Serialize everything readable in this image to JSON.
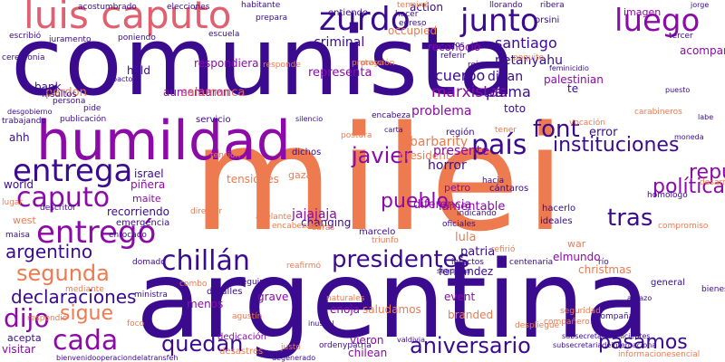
{
  "words": [
    {
      "text": "comunista",
      "color": "#3a0a8f"
    },
    {
      "text": "milei",
      "color": "#ee7a50"
    },
    {
      "text": "argentina",
      "color": "#3a0a8f"
    },
    {
      "text": "humildad",
      "color": "#8c0aa8"
    },
    {
      "text": "luis caputo",
      "color": "#e06070"
    },
    {
      "text": "junto",
      "color": "#3a0a8f"
    },
    {
      "text": "zurdo",
      "color": "#3a0a8f"
    },
    {
      "text": "luego",
      "color": "#8c0aa8"
    },
    {
      "text": "entrega",
      "color": "#3a0a8f"
    },
    {
      "text": "entregó",
      "color": "#8c0aa8"
    },
    {
      "text": "caputo",
      "color": "#8c0aa8"
    },
    {
      "text": "país",
      "color": "#3a0a8f"
    },
    {
      "text": "font",
      "color": "#3a0a8f"
    },
    {
      "text": "javier",
      "color": "#8c0aa8"
    },
    {
      "text": "pueblo",
      "color": "#8c0aa8"
    },
    {
      "text": "república",
      "color": "#8c0aa8"
    },
    {
      "text": "política",
      "color": "#8c0aa8"
    },
    {
      "text": "instituciones",
      "color": "#3a0a8f"
    },
    {
      "text": "tras",
      "color": "#3a0a8f"
    },
    {
      "text": "chillán",
      "color": "#3a0a8f"
    },
    {
      "text": "presidentes",
      "color": "#3a0a8f"
    },
    {
      "text": "segunda",
      "color": "#ee7a50"
    },
    {
      "text": "argentino",
      "color": "#3a0a8f"
    },
    {
      "text": "declaraciones",
      "color": "#3a0a8f"
    },
    {
      "text": "dijo",
      "color": "#8c0aa8"
    },
    {
      "text": "sigue",
      "color": "#ee7a50"
    },
    {
      "text": "cada",
      "color": "#8c0aa8"
    },
    {
      "text": "quedan",
      "color": "#3a0a8f"
    },
    {
      "text": "aniversario",
      "color": "#3a0a8f"
    },
    {
      "text": "pasamos",
      "color": "#3a0a8f"
    },
    {
      "text": "marxistas",
      "color": "#8c0aa8"
    },
    {
      "text": "santiago",
      "color": "#3a0a8f"
    },
    {
      "text": "criminal",
      "color": "#3a0a8f"
    },
    {
      "text": "entiendo",
      "color": "#3a0a8f"
    },
    {
      "text": "imagen",
      "color": "#8c0aa8"
    },
    {
      "text": "cuerpo",
      "color": "#3a0a8f"
    },
    {
      "text": "netanyahu",
      "color": "#3a0a8f"
    },
    {
      "text": "palma",
      "color": "#3a0a8f"
    },
    {
      "text": "toto",
      "color": "#3a0a8f"
    },
    {
      "text": "digan",
      "color": "#3a0a8f"
    },
    {
      "text": "representa",
      "color": "#8c0aa8"
    },
    {
      "text": "problema",
      "color": "#8c0aa8"
    },
    {
      "text": "occupied",
      "color": "#ee7a50"
    },
    {
      "text": "action",
      "color": "#3a0a8f"
    },
    {
      "text": "reconoció",
      "color": "#8c0aa8"
    },
    {
      "text": "acompañado",
      "color": "#8c0aa8"
    },
    {
      "text": "palestinian",
      "color": "#8c0aa8"
    },
    {
      "text": "barbarity",
      "color": "#ee7a50"
    },
    {
      "text": "error",
      "color": "#3a0a8f"
    },
    {
      "text": "president",
      "color": "#ee7a50"
    },
    {
      "text": "presente",
      "color": "#8c0aa8"
    },
    {
      "text": "horror",
      "color": "#3a0a8f"
    },
    {
      "text": "diferencia",
      "color": "#8c0aa8"
    },
    {
      "text": "lamentable",
      "color": "#8c0aa8"
    },
    {
      "text": "israel",
      "color": "#3a0a8f"
    },
    {
      "text": "maite",
      "color": "#8c0aa8"
    },
    {
      "text": "piñera",
      "color": "#8c0aa8"
    },
    {
      "text": "recorriendo",
      "color": "#3a0a8f"
    },
    {
      "text": "emergencia",
      "color": "#3a0a8f"
    },
    {
      "text": "west",
      "color": "#ee7a50"
    },
    {
      "text": "world",
      "color": "#3a0a8f"
    },
    {
      "text": "ahh",
      "color": "#3a0a8f"
    },
    {
      "text": "perdon",
      "color": "#ee7a50"
    },
    {
      "text": "held",
      "color": "#3a0a8f"
    },
    {
      "text": "bank",
      "color": "#3a0a8f"
    },
    {
      "text": "insultos",
      "color": "#3a0a8f"
    },
    {
      "text": "aumentaron",
      "color": "#8c0aa8"
    },
    {
      "text": "respondiera",
      "color": "#8c0aa8"
    },
    {
      "text": "salamanca",
      "color": "#e06070"
    },
    {
      "text": "tensiones",
      "color": "#ee7a50"
    },
    {
      "text": "jajajaja",
      "color": "#8c0aa8"
    },
    {
      "text": "changing",
      "color": "#3a0a8f"
    },
    {
      "text": "petro",
      "color": "#8c0aa8"
    },
    {
      "text": "lula",
      "color": "#ee7a50"
    },
    {
      "text": "patria",
      "color": "#3a0a8f"
    },
    {
      "text": "elmundo",
      "color": "#8c0aa8"
    },
    {
      "text": "fernandez",
      "color": "#3a0a8f"
    },
    {
      "text": "christmas",
      "color": "#ee7a50"
    },
    {
      "text": "event",
      "color": "#8c0aa8"
    },
    {
      "text": "branded",
      "color": "#ee7a50"
    },
    {
      "text": "saludamos",
      "color": "#ee7a50"
    },
    {
      "text": "grave",
      "color": "#8c0aa8"
    },
    {
      "text": "menos",
      "color": "#8c0aa8"
    },
    {
      "text": "enoja",
      "color": "#8c0aa8"
    },
    {
      "text": "vieron",
      "color": "#8c0aa8"
    },
    {
      "text": "chilean",
      "color": "#8c0aa8"
    },
    {
      "text": "visitar",
      "color": "#8c0aa8"
    },
    {
      "text": "acepta",
      "color": "#3a0a8f"
    },
    {
      "text": "desastres",
      "color": "#ee7a50"
    },
    {
      "text": "dedicación",
      "color": "#8c0aa8"
    },
    {
      "text": "detalles",
      "color": "#3a0a8f"
    },
    {
      "text": "marcelo",
      "color": "#3a0a8f"
    },
    {
      "text": "cántaros",
      "color": "#3a0a8f"
    },
    {
      "text": "war",
      "color": "#ee7a50"
    },
    {
      "text": "hacerlo",
      "color": "#3a0a8f"
    },
    {
      "text": "ideales",
      "color": "#3a0a8f"
    },
    {
      "text": "general",
      "color": "#3a0a8f"
    },
    {
      "text": "región",
      "color": "#3a0a8f"
    },
    {
      "text": "servicio",
      "color": "#3a0a8f"
    },
    {
      "text": "gaza",
      "color": "#ee7a50"
    },
    {
      "text": "dichos",
      "color": "#3a0a8f"
    },
    {
      "text": "acostumbrado",
      "color": "#3a0a8f"
    },
    {
      "text": "elecciones",
      "color": "#3a0a8f"
    },
    {
      "text": "habitante",
      "color": "#3a0a8f"
    },
    {
      "text": "llorando",
      "color": "#3a0a8f"
    },
    {
      "text": "ribera",
      "color": "#3a0a8f"
    },
    {
      "text": "orsini",
      "color": "#3a0a8f"
    },
    {
      "text": "escribió",
      "color": "#3a0a8f"
    },
    {
      "text": "juramento",
      "color": "#3a0a8f"
    },
    {
      "text": "poniendo",
      "color": "#3a0a8f"
    },
    {
      "text": "escuela",
      "color": "#3a0a8f"
    },
    {
      "text": "terminó",
      "color": "#ee7a50"
    },
    {
      "text": "hacer",
      "color": "#3a0a8f"
    },
    {
      "text": "egreso",
      "color": "#3a0a8f"
    },
    {
      "text": "prepara",
      "color": "#3a0a8f"
    },
    {
      "text": "nuevos",
      "color": "#3a0a8f"
    },
    {
      "text": "referir",
      "color": "#3a0a8f"
    },
    {
      "text": "rojas",
      "color": "#3a0a8f"
    },
    {
      "text": "poquito",
      "color": "#ee7a50"
    },
    {
      "text": "tercer",
      "color": "#3a0a8f"
    },
    {
      "text": "publicación",
      "color": "#3a0a8f"
    },
    {
      "text": "pide",
      "color": "#3a0a8f"
    },
    {
      "text": "ceremonia",
      "color": "#3a0a8f"
    },
    {
      "text": "trabajando",
      "color": "#3a0a8f"
    },
    {
      "text": "persona",
      "color": "#3a0a8f"
    },
    {
      "text": "encabeza",
      "color": "#3a0a8f"
    },
    {
      "text": "tener",
      "color": "#ee7a50"
    },
    {
      "text": "vocación",
      "color": "#ee7a50"
    },
    {
      "text": "carabineros",
      "color": "#ee7a50"
    },
    {
      "text": "hacia",
      "color": "#3a0a8f"
    },
    {
      "text": "oficiales",
      "color": "#3a0a8f"
    },
    {
      "text": "triunfo",
      "color": "#ee7a50"
    },
    {
      "text": "obras",
      "color": "#ee7a50"
    },
    {
      "text": "intactos",
      "color": "#3a0a8f"
    },
    {
      "text": "indicando",
      "color": "#3a0a8f"
    },
    {
      "text": "refirió",
      "color": "#ee7a50"
    },
    {
      "text": "centenaria",
      "color": "#3a0a8f"
    },
    {
      "text": "reafirmó",
      "color": "#ee7a50"
    },
    {
      "text": "seguimos",
      "color": "#3a0a8f"
    },
    {
      "text": "mediante",
      "color": "#ee7a50"
    },
    {
      "text": "ministra",
      "color": "#3a0a8f"
    },
    {
      "text": "combo",
      "color": "#ee7a50"
    },
    {
      "text": "naturales",
      "color": "#ee7a50"
    },
    {
      "text": "agustín",
      "color": "#ee7a50"
    },
    {
      "text": "justo",
      "color": "#ee7a50"
    },
    {
      "text": "acompaña",
      "color": "#3a0a8f"
    },
    {
      "text": "respondió",
      "color": "#ee7a50"
    },
    {
      "text": "foco",
      "color": "#ee7a50"
    },
    {
      "text": "domado",
      "color": "#3a0a8f"
    },
    {
      "text": "maisa",
      "color": "#3a0a8f"
    },
    {
      "text": "lugar",
      "color": "#ee7a50"
    },
    {
      "text": "enrocado",
      "color": "#3a0a8f"
    },
    {
      "text": "director",
      "color": "#ee7a50"
    },
    {
      "text": "descritor",
      "color": "#3a0a8f"
    },
    {
      "text": "adelante",
      "color": "#ee7a50"
    },
    {
      "text": "encabezaron",
      "color": "#ee7a50"
    },
    {
      "text": "ordenypatria",
      "color": "#3a0a8f"
    },
    {
      "text": "despliegue",
      "color": "#ee7a50"
    },
    {
      "text": "compañero",
      "color": "#ee7a50"
    },
    {
      "text": "seguridad",
      "color": "#ee7a50"
    },
    {
      "text": "informacionesencial",
      "color": "#ee7a50"
    },
    {
      "text": "bienestar",
      "color": "#3a0a8f"
    },
    {
      "text": "compromiso",
      "color": "#ee7a50"
    },
    {
      "text": "homólogo",
      "color": "#3a0a8f"
    },
    {
      "text": "desarrollo",
      "color": "#ee7a50"
    },
    {
      "text": "tensión",
      "color": "#ee7a50"
    },
    {
      "text": "responde",
      "color": "#ee7a50"
    },
    {
      "text": "protección",
      "color": "#ee7a50"
    },
    {
      "text": "praya",
      "color": "#ee7a50"
    },
    {
      "text": "postura",
      "color": "#ee7a50"
    },
    {
      "text": "te",
      "color": "#3a0a8f"
    },
    {
      "text": "río",
      "color": "#3a0a8f"
    },
    {
      "text": "jorge",
      "color": "#3a0a8f"
    },
    {
      "text": "silencio",
      "color": "#3a0a8f"
    },
    {
      "text": "desgobierno",
      "color": "#3a0a8f"
    },
    {
      "text": "pacto",
      "color": "#3a0a8f"
    },
    {
      "text": "puesto",
      "color": "#3a0a8f"
    },
    {
      "text": "feminicidio",
      "color": "#3a0a8f"
    },
    {
      "text": "carta",
      "color": "#3a0a8f"
    },
    {
      "text": "moneda",
      "color": "#3a0a8f"
    },
    {
      "text": "labe",
      "color": "#3a0a8f"
    },
    {
      "text": "seguirían",
      "color": "#3a0a8f"
    },
    {
      "text": "degenerado",
      "color": "#3a0a8f"
    },
    {
      "text": "valdivia",
      "color": "#3a0a8f"
    },
    {
      "text": "abrazo",
      "color": "#3a0a8f"
    },
    {
      "text": "inusual",
      "color": "#3a0a8f"
    },
    {
      "text": "subsecretariadelicieptes",
      "color": "#3a0a8f"
    },
    {
      "text": "bienvenidooperaciondelatransfeh",
      "color": "#3a0a8f"
    },
    {
      "text": "subsecretariadeinternaciona",
      "color": "#3a0a8f"
    }
  ]
}
